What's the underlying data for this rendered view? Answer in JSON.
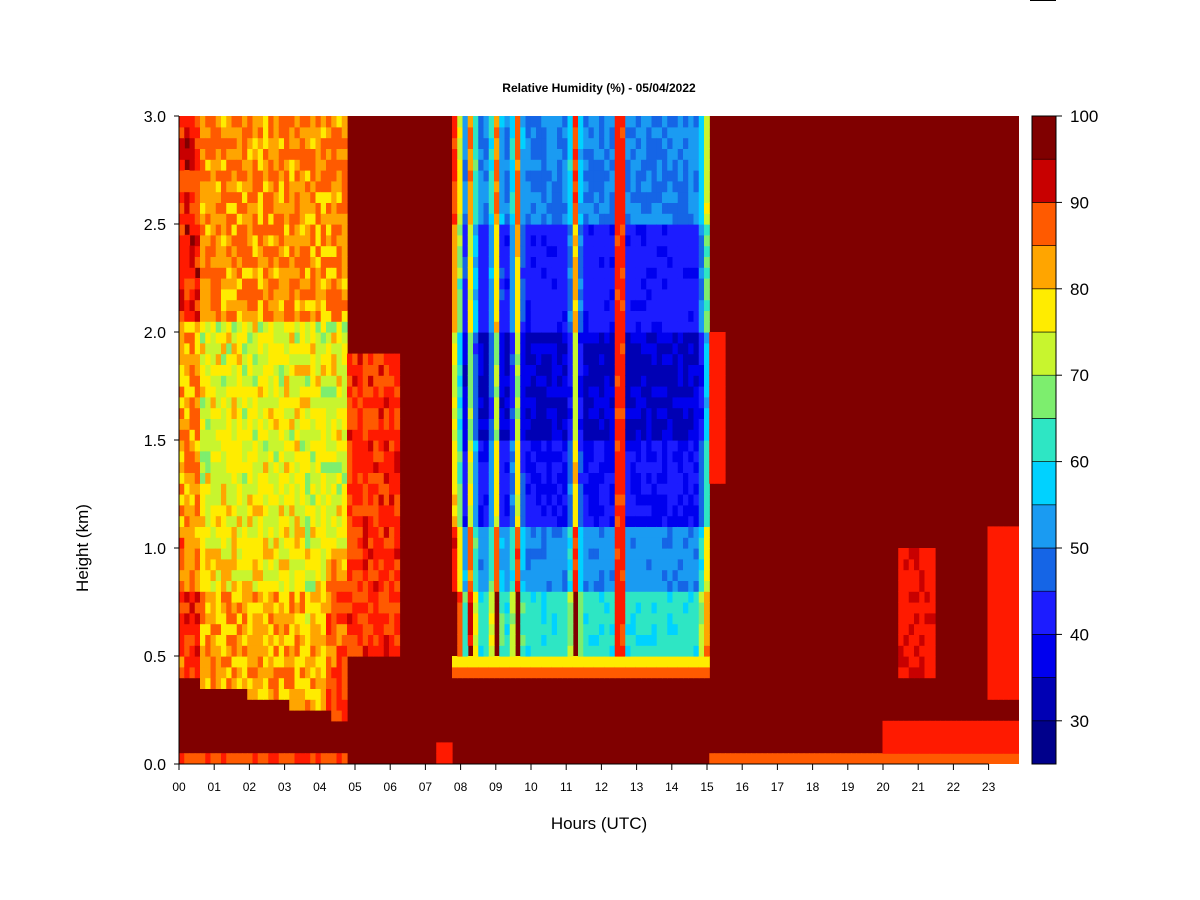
{
  "chart_data": {
    "type": "heatmap",
    "title": "Relative Humidity (%) - 05/04/2022",
    "xlabel": "Hours (UTC)",
    "ylabel": "Height (km)",
    "xlim": [
      0,
      23.85
    ],
    "ylim": [
      0,
      3.0
    ],
    "x_tick_labels": [
      "00",
      "01",
      "02",
      "03",
      "04",
      "05",
      "06",
      "07",
      "08",
      "09",
      "10",
      "11",
      "12",
      "13",
      "14",
      "15",
      "16",
      "17",
      "18",
      "19",
      "20",
      "21",
      "22",
      "23"
    ],
    "y_tick_labels": [
      "0.0",
      "0.5",
      "1.0",
      "1.5",
      "2.0",
      "2.5",
      "3.0"
    ],
    "colorbar": {
      "range": [
        25,
        100
      ],
      "levels": [
        25,
        30,
        35,
        40,
        45,
        50,
        55,
        60,
        65,
        70,
        75,
        80,
        85,
        90,
        95,
        100
      ],
      "labels": [
        "30",
        "40",
        "50",
        "60",
        "70",
        "80",
        "90",
        "100"
      ],
      "colors": [
        "#00008b",
        "#0000b4",
        "#0000ee",
        "#1c1cff",
        "#1565e6",
        "#1a9bf2",
        "#00d2ff",
        "#2ee6c4",
        "#7dee6e",
        "#c8f52e",
        "#ffec00",
        "#ffa500",
        "#ff5a00",
        "#ff1a00",
        "#c80000"
      ]
    },
    "humidity_profiles": [
      {
        "hours": "00-05",
        "surface_0_0.05km": 88,
        "low_0.1_0.5km": 96,
        "mid_1_2km": 75,
        "upper_2_3km": 86
      },
      {
        "hours": "05-07.6",
        "surface_0_0.05km": 100,
        "low_0.1_0.5km": 100,
        "mid_1_2km": 95,
        "upper_2_3km": 100
      },
      {
        "hours": "07.8-15",
        "surface_0_0.35km": 100,
        "layer_0.5_1km": 62,
        "mid_1.2_2km": 36,
        "upper_2_3km": 50
      },
      {
        "hours": "15.2-23.8",
        "surface_0_0.05km": 90,
        "low_0.1_3km": 100
      }
    ]
  }
}
